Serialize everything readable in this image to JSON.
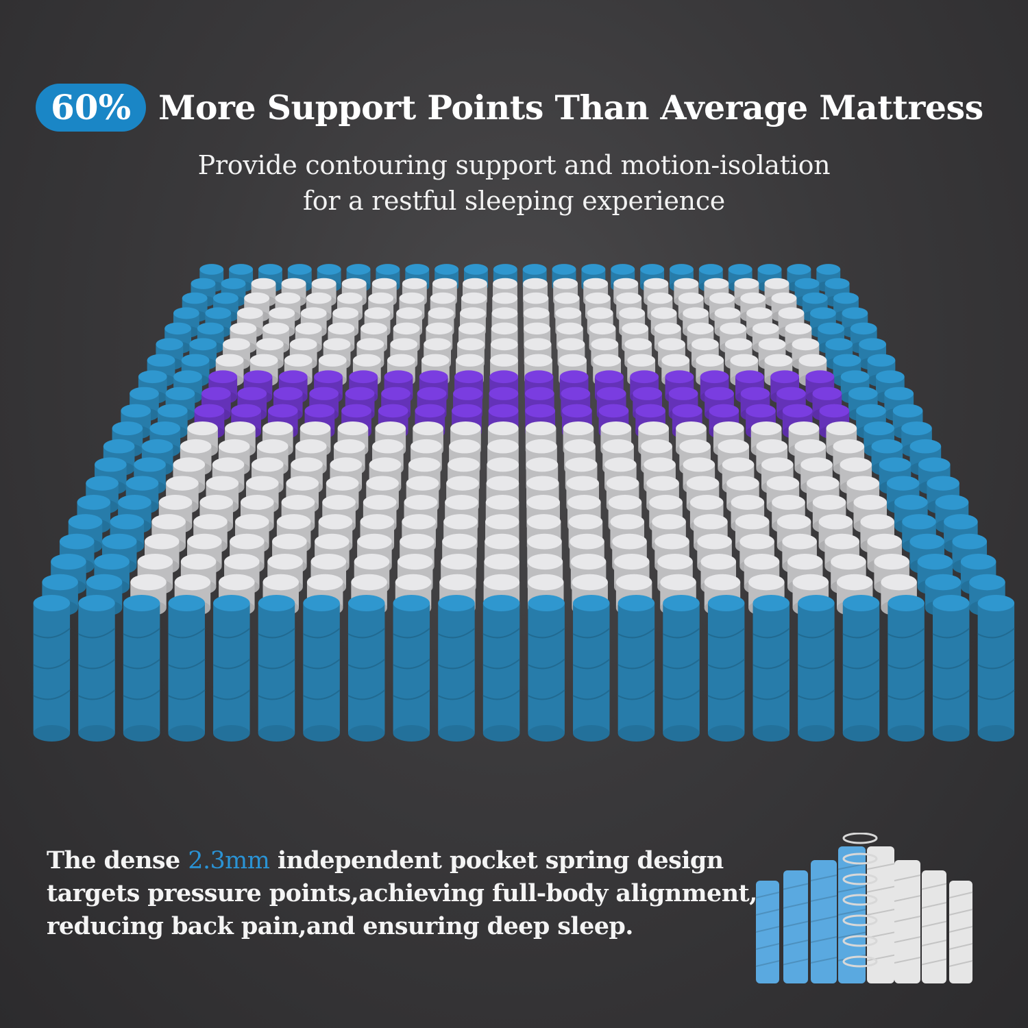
{
  "headline": {
    "badge": "60%",
    "title": "More Support Points Than Average Mattress"
  },
  "subtitle": {
    "line1": "Provide contouring support and motion-isolation",
    "line2": "for a restful sleeping experience"
  },
  "description": {
    "prefix": "The dense ",
    "highlight": "2.3mm",
    "line1_rest": " independent pocket spring design",
    "line2": "targets pressure points,achieving full-body alignment,",
    "line3": "reducing back pain,and ensuring deep sleep."
  },
  "colors": {
    "background": "#3a393b",
    "accent_blue": "#1a86c6",
    "edge_coil": "#2f97cf",
    "comfort_coil": "#e8e8ea",
    "zone_coil": "#7a3de0",
    "highlight_text": "#2a93d5"
  },
  "illustrations": {
    "mattress": "pocket-spring-grid",
    "detail": "pocket-spring-coil-cutaway"
  }
}
